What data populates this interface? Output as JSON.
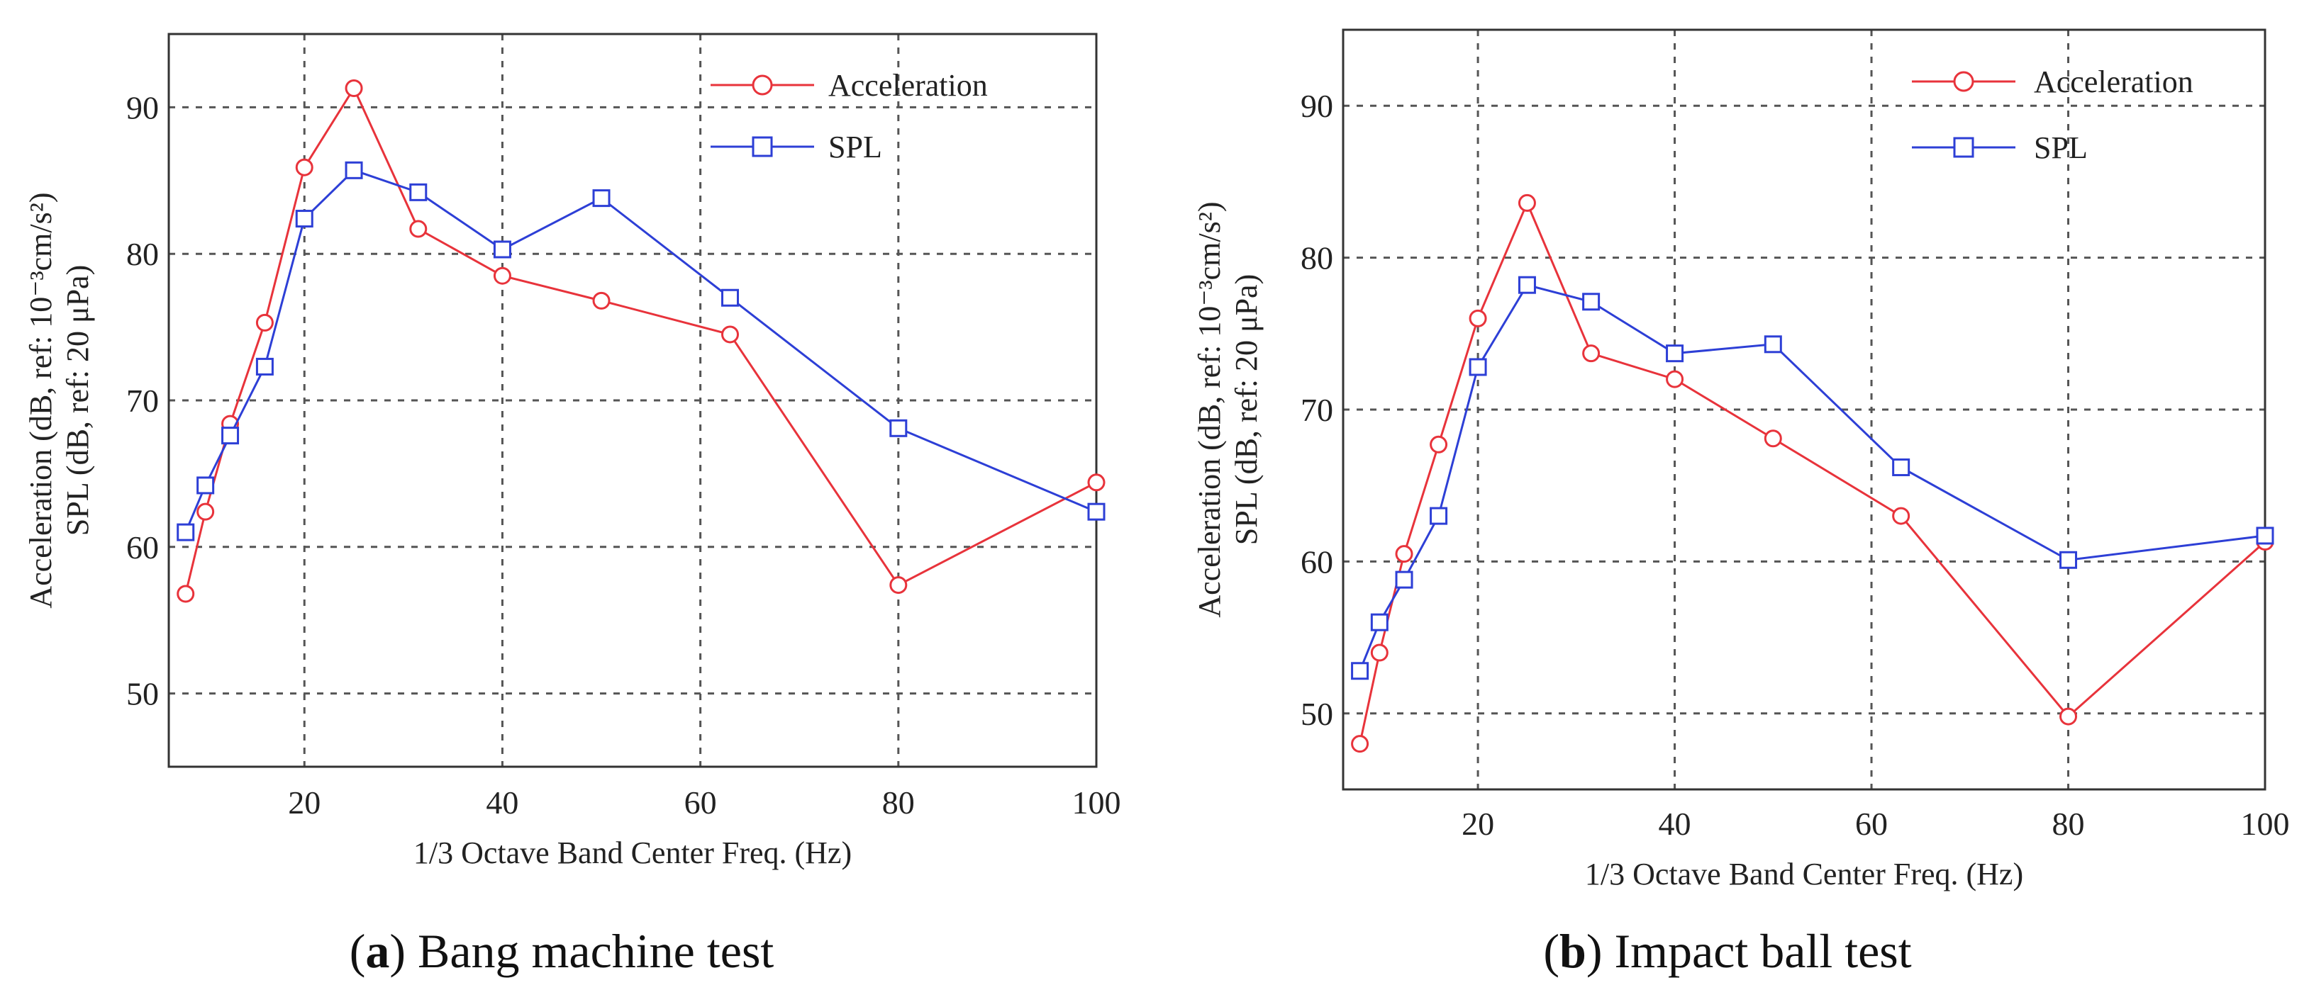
{
  "figure": {
    "panel_a_caption": {
      "open": "(",
      "letter": "a",
      "close": ")",
      "text": " Bang machine test"
    },
    "panel_b_caption": {
      "open": "(",
      "letter": "b",
      "close": ")",
      "text": " Impact ball test"
    }
  },
  "chart_data": [
    {
      "type": "line",
      "title": "",
      "xlabel": "1/3 Octave Band Center Freq. (Hz)",
      "ylabel_line1": "Acceleration (dB, ref: 10⁻³cm/s²)",
      "ylabel_line2": "SPL (dB, ref: 20 μPa)",
      "xlim": [
        6.3,
        100
      ],
      "ylim": [
        45,
        95
      ],
      "xticks": [
        20,
        40,
        60,
        80,
        100
      ],
      "yticks": [
        50,
        60,
        70,
        80,
        90
      ],
      "grid": true,
      "legend_position": "top-right",
      "x": [
        8,
        10,
        12.5,
        16,
        20,
        25,
        31.5,
        40,
        50,
        63,
        80,
        100
      ],
      "series": [
        {
          "name": "Acceleration",
          "color": "#e8333b",
          "marker": "circle",
          "values": [
            56.8,
            62.4,
            68.4,
            75.3,
            85.9,
            91.3,
            81.7,
            78.5,
            76.8,
            74.5,
            57.4,
            64.4
          ]
        },
        {
          "name": "SPL",
          "color": "#2d3fd6",
          "marker": "square",
          "values": [
            61.0,
            64.2,
            67.6,
            72.3,
            82.4,
            85.7,
            84.2,
            80.3,
            83.8,
            77.0,
            68.1,
            62.4
          ]
        }
      ]
    },
    {
      "type": "line",
      "title": "",
      "xlabel": "1/3 Octave Band Center Freq. (Hz)",
      "ylabel_line1": "Acceleration (dB, ref: 10⁻³cm/s²)",
      "ylabel_line2": "SPL (dB, ref: 20 μPa)",
      "xlim": [
        6.3,
        100
      ],
      "ylim": [
        45,
        95
      ],
      "xticks": [
        20,
        40,
        60,
        80,
        100
      ],
      "yticks": [
        50,
        60,
        70,
        80,
        90
      ],
      "grid": true,
      "legend_position": "top-right",
      "x": [
        8,
        10,
        12.5,
        16,
        20,
        25,
        31.5,
        40,
        50,
        63,
        80,
        100
      ],
      "series": [
        {
          "name": "Acceleration",
          "color": "#e8333b",
          "marker": "circle",
          "values": [
            48.0,
            54.0,
            60.5,
            67.7,
            76.0,
            83.6,
            73.7,
            72.0,
            68.1,
            63.0,
            49.8,
            61.3
          ]
        },
        {
          "name": "SPL",
          "color": "#2d3fd6",
          "marker": "square",
          "values": [
            52.8,
            56.0,
            58.8,
            63.0,
            72.8,
            78.2,
            77.1,
            73.7,
            74.3,
            66.2,
            60.1,
            61.7
          ]
        }
      ]
    }
  ]
}
